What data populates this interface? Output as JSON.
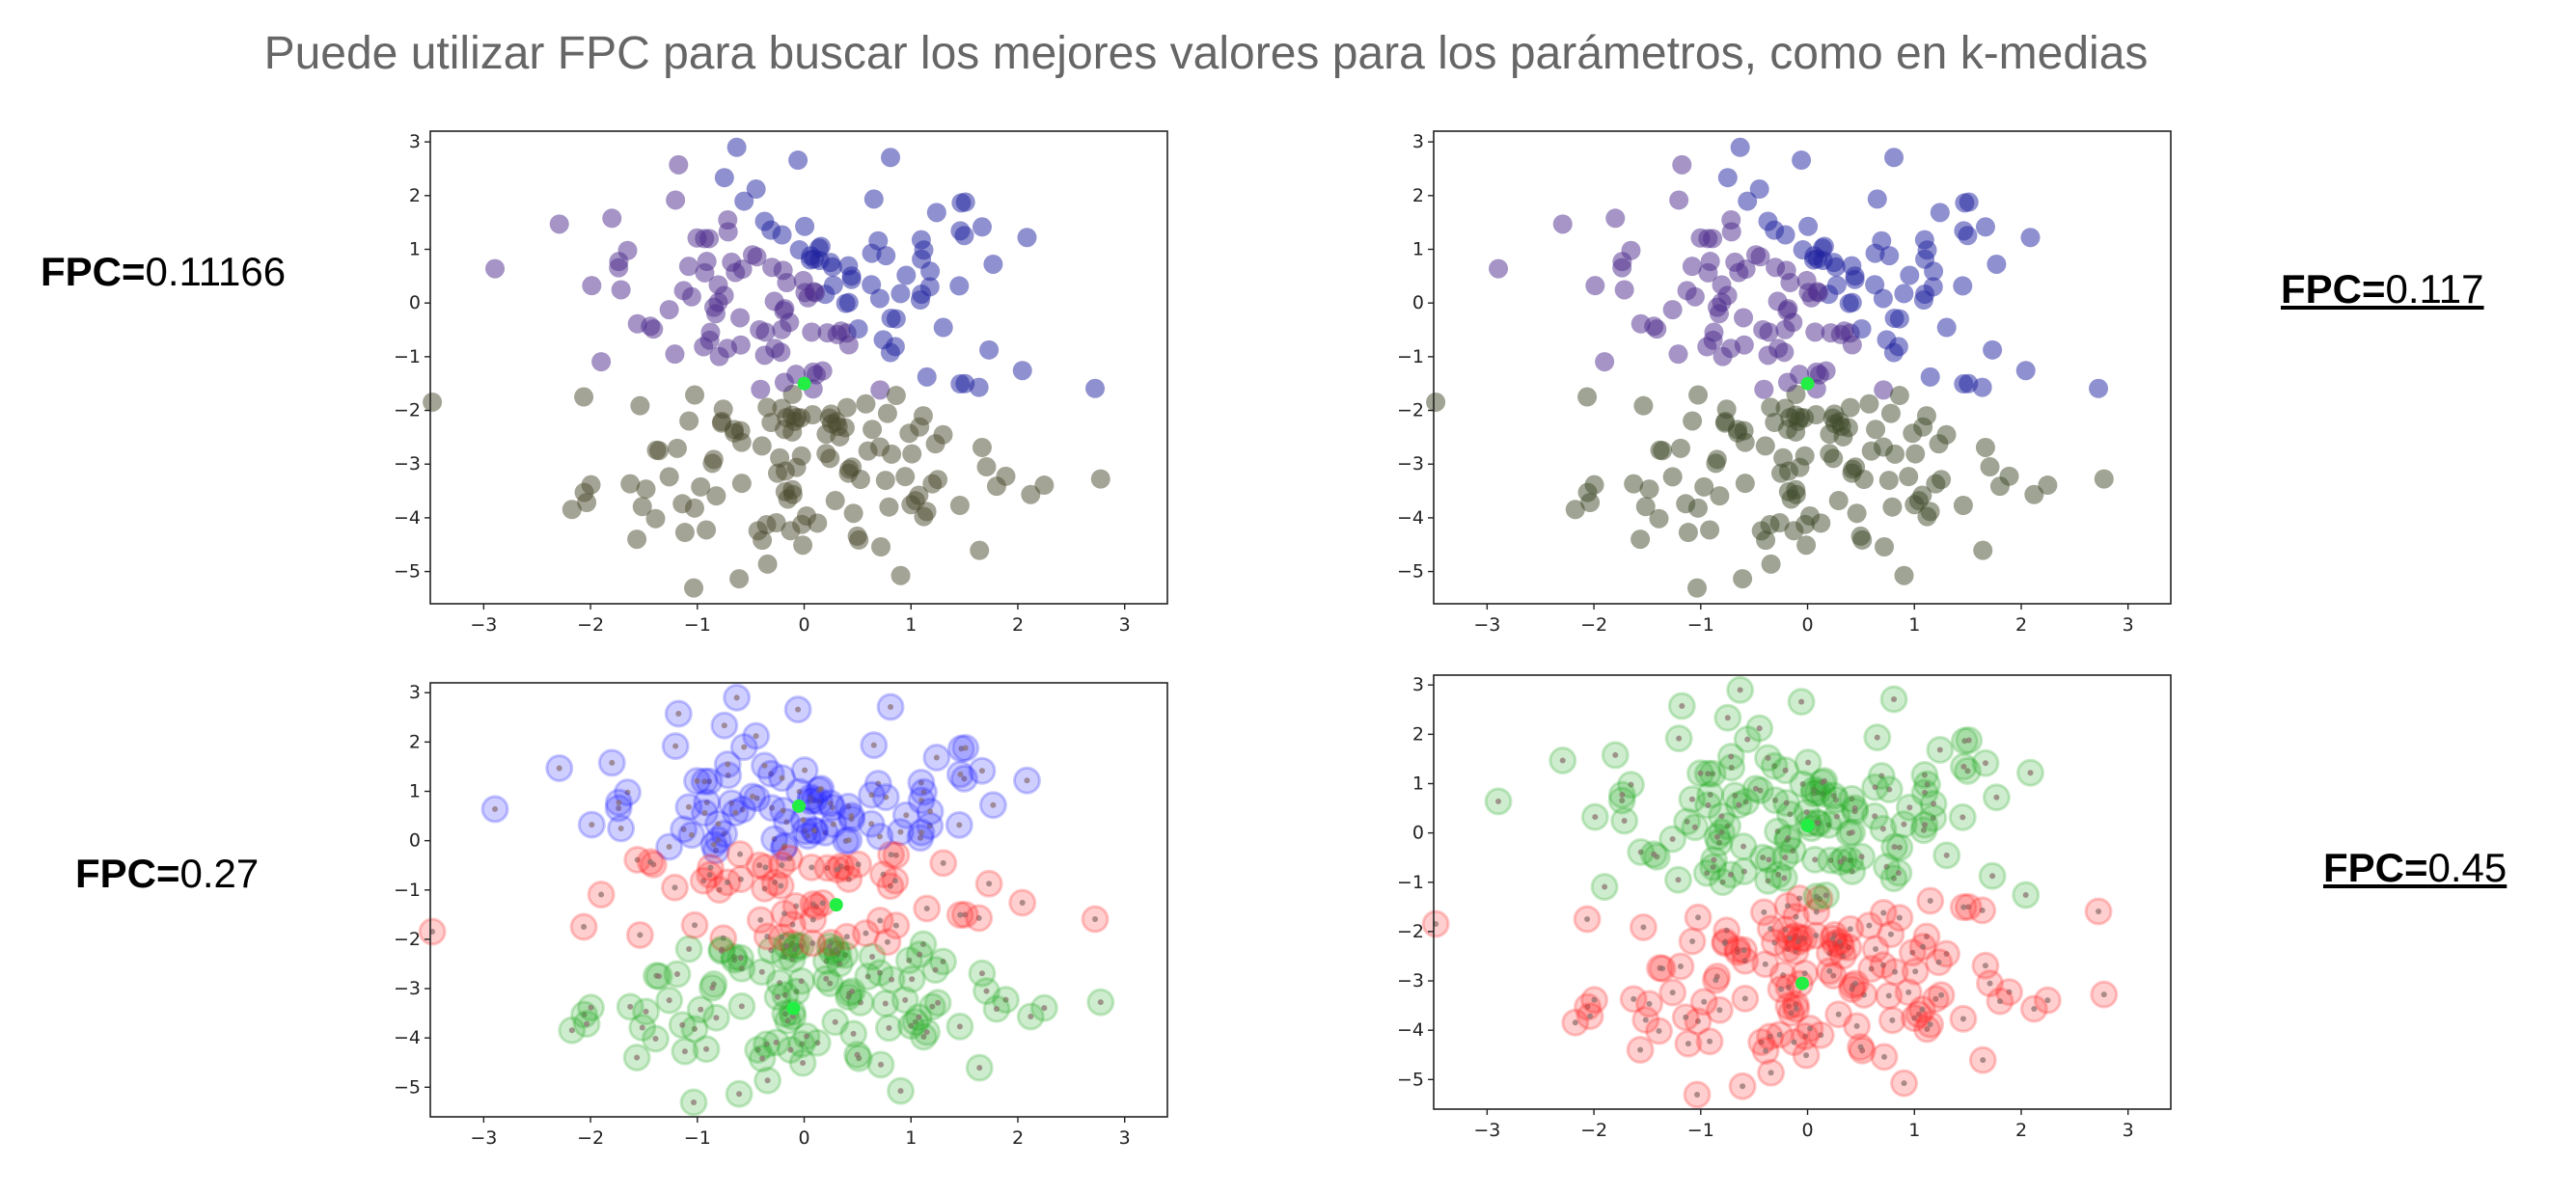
{
  "slide": {
    "title": "Puede utilizar FPC para buscar los mejores valores para los parámetros, como en k-medias"
  },
  "fpc_labels": [
    {
      "prefix": "FPC=",
      "value": "0.11166"
    },
    {
      "prefix": "FPC=",
      "value": "0.117"
    },
    {
      "prefix": "FPC=",
      "value": "0.27"
    },
    {
      "prefix": "FPC=",
      "value": "0.45"
    }
  ],
  "chart_data": [
    {
      "type": "scatter",
      "title": "",
      "xlabel": "",
      "ylabel": "",
      "xlim": [
        -3.5,
        3.4
      ],
      "ylim": [
        -5.6,
        3.2
      ],
      "xticks": [
        -3,
        -2,
        -1,
        0,
        1,
        2,
        3
      ],
      "yticks": [
        3,
        2,
        1,
        0,
        -1,
        -2,
        -3,
        -4,
        -5
      ],
      "grid": false,
      "colors": {
        "cluster_a": "#4b2a8c",
        "cluster_b": "#1f22a0",
        "cluster_c": "#4a4a2e",
        "center": "#22ee44"
      },
      "clusters": 3,
      "centers": [
        {
          "x": 0.0,
          "y": -1.5
        }
      ],
      "fpc": 0.11166
    },
    {
      "type": "scatter",
      "title": "",
      "xlabel": "",
      "ylabel": "",
      "xlim": [
        -3.5,
        3.4
      ],
      "ylim": [
        -5.6,
        3.2
      ],
      "xticks": [
        -3,
        -2,
        -1,
        0,
        1,
        2,
        3
      ],
      "yticks": [
        3,
        2,
        1,
        0,
        -1,
        -2,
        -3,
        -4,
        -5
      ],
      "grid": false,
      "colors": {
        "cluster_a": "#4b2a8c",
        "cluster_b": "#1f22a0",
        "cluster_c": "#3f4a2a",
        "center": "#22ee44"
      },
      "clusters": 3,
      "centers": [
        {
          "x": 0.0,
          "y": -1.5
        }
      ],
      "fpc": 0.117
    },
    {
      "type": "scatter",
      "title": "",
      "xlabel": "",
      "ylabel": "",
      "xlim": [
        -3.5,
        3.4
      ],
      "ylim": [
        -5.6,
        3.2
      ],
      "xticks": [
        -3,
        -2,
        -1,
        0,
        1,
        2,
        3
      ],
      "yticks": [
        3,
        2,
        1,
        0,
        -1,
        -2,
        -3,
        -4,
        -5
      ],
      "grid": false,
      "colors": {
        "cluster_a": "#2222ff",
        "cluster_b": "#ff2222",
        "cluster_c": "#22aa22",
        "center": "#22ee44"
      },
      "clusters": 3,
      "centers": [
        {
          "x": -0.05,
          "y": 0.7
        },
        {
          "x": 0.3,
          "y": -1.3
        },
        {
          "x": -0.1,
          "y": -3.4
        }
      ],
      "fpc": 0.27
    },
    {
      "type": "scatter",
      "title": "",
      "xlabel": "",
      "ylabel": "",
      "xlim": [
        -3.5,
        3.4
      ],
      "ylim": [
        -5.6,
        3.2
      ],
      "xticks": [
        -3,
        -2,
        -1,
        0,
        1,
        2,
        3
      ],
      "yticks": [
        3,
        2,
        1,
        0,
        -1,
        -2,
        -3,
        -4,
        -5
      ],
      "grid": false,
      "colors": {
        "cluster_a": "#22aa22",
        "cluster_b": "#ff2222",
        "center": "#22ee44"
      },
      "clusters": 2,
      "centers": [
        {
          "x": 0.0,
          "y": 0.15
        },
        {
          "x": -0.05,
          "y": -3.05
        }
      ],
      "fpc": 0.45
    }
  ]
}
